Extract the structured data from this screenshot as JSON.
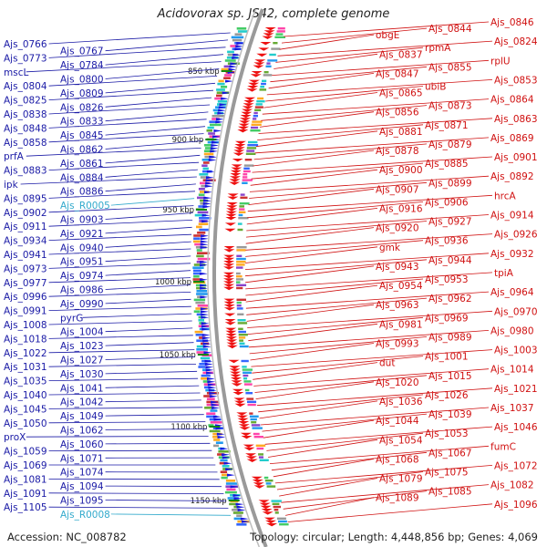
{
  "title": "Acidovorax sp. JS42, complete genome",
  "accession": "Accession: NC_008782",
  "topology": "Topology: circular; Length: 4,448,856 bp; Genes: 4,069",
  "colors": {
    "left": "#1a1aa6",
    "right": "#d01010",
    "rna": "#33aacc",
    "backbone": "#9a9a9a"
  },
  "scale_marks": [
    "850 kbp",
    "900 kbp",
    "950 kbp",
    "1000 kbp",
    "1050 kbp",
    "1100 kbp",
    "1150 kbp"
  ],
  "left_labels": [
    {
      "text": "Ajs_0766",
      "c": "l"
    },
    {
      "text": "Ajs_0767",
      "c": "l"
    },
    {
      "text": "Ajs_0773",
      "c": "l"
    },
    {
      "text": "Ajs_0784",
      "c": "l"
    },
    {
      "text": "mscL",
      "c": "l"
    },
    {
      "text": "Ajs_0800",
      "c": "l"
    },
    {
      "text": "Ajs_0804",
      "c": "l"
    },
    {
      "text": "Ajs_0809",
      "c": "l"
    },
    {
      "text": "Ajs_0825",
      "c": "l"
    },
    {
      "text": "Ajs_0826",
      "c": "l"
    },
    {
      "text": "Ajs_0838",
      "c": "l"
    },
    {
      "text": "Ajs_0833",
      "c": "l"
    },
    {
      "text": "Ajs_0848",
      "c": "l"
    },
    {
      "text": "Ajs_0845",
      "c": "l"
    },
    {
      "text": "Ajs_0858",
      "c": "l"
    },
    {
      "text": "Ajs_0862",
      "c": "l"
    },
    {
      "text": "prfA",
      "c": "l"
    },
    {
      "text": "Ajs_0861",
      "c": "l"
    },
    {
      "text": "Ajs_0883",
      "c": "l"
    },
    {
      "text": "Ajs_0884",
      "c": "l"
    },
    {
      "text": "ipk",
      "c": "l"
    },
    {
      "text": "Ajs_0886",
      "c": "l"
    },
    {
      "text": "Ajs_0895",
      "c": "l"
    },
    {
      "text": "Ajs_R0005",
      "c": "c"
    },
    {
      "text": "Ajs_0902",
      "c": "l"
    },
    {
      "text": "Ajs_0903",
      "c": "l"
    },
    {
      "text": "Ajs_0911",
      "c": "l"
    },
    {
      "text": "Ajs_0921",
      "c": "l"
    },
    {
      "text": "Ajs_0934",
      "c": "l"
    },
    {
      "text": "Ajs_0940",
      "c": "l"
    },
    {
      "text": "Ajs_0941",
      "c": "l"
    },
    {
      "text": "Ajs_0951",
      "c": "l"
    },
    {
      "text": "Ajs_0973",
      "c": "l"
    },
    {
      "text": "Ajs_0974",
      "c": "l"
    },
    {
      "text": "Ajs_0977",
      "c": "l"
    },
    {
      "text": "Ajs_0986",
      "c": "l"
    },
    {
      "text": "Ajs_0996",
      "c": "l"
    },
    {
      "text": "Ajs_0990",
      "c": "l"
    },
    {
      "text": "Ajs_0991",
      "c": "l"
    },
    {
      "text": "pyrG",
      "c": "l"
    },
    {
      "text": "Ajs_1008",
      "c": "l"
    },
    {
      "text": "Ajs_1004",
      "c": "l"
    },
    {
      "text": "Ajs_1018",
      "c": "l"
    },
    {
      "text": "Ajs_1023",
      "c": "l"
    },
    {
      "text": "Ajs_1022",
      "c": "l"
    },
    {
      "text": "Ajs_1027",
      "c": "l"
    },
    {
      "text": "Ajs_1031",
      "c": "l"
    },
    {
      "text": "Ajs_1030",
      "c": "l"
    },
    {
      "text": "Ajs_1035",
      "c": "l"
    },
    {
      "text": "Ajs_1041",
      "c": "l"
    },
    {
      "text": "Ajs_1040",
      "c": "l"
    },
    {
      "text": "Ajs_1042",
      "c": "l"
    },
    {
      "text": "Ajs_1045",
      "c": "l"
    },
    {
      "text": "Ajs_1049",
      "c": "l"
    },
    {
      "text": "Ajs_1050",
      "c": "l"
    },
    {
      "text": "Ajs_1062",
      "c": "l"
    },
    {
      "text": "proX",
      "c": "l"
    },
    {
      "text": "Ajs_1060",
      "c": "l"
    },
    {
      "text": "Ajs_1059",
      "c": "l"
    },
    {
      "text": "Ajs_1071",
      "c": "l"
    },
    {
      "text": "Ajs_1069",
      "c": "l"
    },
    {
      "text": "Ajs_1074",
      "c": "l"
    },
    {
      "text": "Ajs_1081",
      "c": "l"
    },
    {
      "text": "Ajs_1094",
      "c": "l"
    },
    {
      "text": "Ajs_1091",
      "c": "l"
    },
    {
      "text": "Ajs_1095",
      "c": "l"
    },
    {
      "text": "Ajs_1105",
      "c": "l"
    },
    {
      "text": "Ajs_R0008",
      "c": "c"
    }
  ],
  "right_labels": [
    "Ajs_0846",
    "Ajs_0844",
    "obgE",
    "Ajs_0824",
    "rpmA",
    "Ajs_0837",
    "rplU",
    "Ajs_0855",
    "Ajs_0847",
    "Ajs_0853",
    "ubiB",
    "Ajs_0865",
    "Ajs_0864",
    "Ajs_0873",
    "Ajs_0856",
    "Ajs_0863",
    "Ajs_0871",
    "Ajs_0881",
    "Ajs_0869",
    "Ajs_0879",
    "Ajs_0878",
    "Ajs_0901",
    "Ajs_0885",
    "Ajs_0900",
    "Ajs_0892",
    "Ajs_0899",
    "Ajs_0907",
    "hrcA",
    "Ajs_0906",
    "Ajs_0916",
    "Ajs_0914",
    "Ajs_0927",
    "Ajs_0920",
    "Ajs_0926",
    "Ajs_0936",
    "gmk",
    "Ajs_0932",
    "Ajs_0944",
    "Ajs_0943",
    "tpiA",
    "Ajs_0953",
    "Ajs_0954",
    "Ajs_0964",
    "Ajs_0962",
    "Ajs_0963",
    "Ajs_0970",
    "Ajs_0969",
    "Ajs_0981",
    "Ajs_0980",
    "Ajs_0989",
    "Ajs_0993",
    "Ajs_1003",
    "Ajs_1001",
    "dut",
    "Ajs_1014",
    "Ajs_1015",
    "Ajs_1020",
    "Ajs_1021",
    "Ajs_1026",
    "Ajs_1036",
    "Ajs_1037",
    "Ajs_1039",
    "Ajs_1044",
    "Ajs_1046",
    "Ajs_1053",
    "Ajs_1054",
    "fumC",
    "Ajs_1067",
    "Ajs_1068",
    "Ajs_1072",
    "Ajs_1075",
    "Ajs_1079",
    "Ajs_1082",
    "Ajs_1085",
    "Ajs_1089",
    "Ajs_1096"
  ]
}
